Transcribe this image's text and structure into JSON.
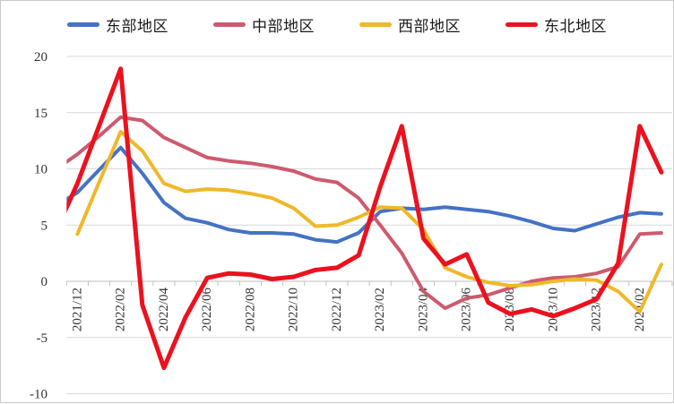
{
  "figure": {
    "background": "#ffffff",
    "border_color": "#c9c9c9",
    "gridline_color": "#d9d9d9",
    "axis_color": "#bfbfbf",
    "tick_label_color": "#333333"
  },
  "legend": {
    "position": "top",
    "items": [
      {
        "key": "east",
        "label": "东部地区",
        "color": "#4472C4"
      },
      {
        "key": "central",
        "label": "中部地区",
        "color": "#CD5A6E"
      },
      {
        "key": "west",
        "label": "西部地区",
        "color": "#EFB829"
      },
      {
        "key": "northeast",
        "label": "东北地区",
        "color": "#EC111E"
      }
    ]
  },
  "chart_data": {
    "type": "line",
    "title": "",
    "xlabel": "",
    "ylabel": "",
    "ylim": [
      -10,
      20
    ],
    "yticks": [
      20,
      15,
      10,
      5,
      0,
      -5,
      -10
    ],
    "grid": true,
    "x_label_interval": 2,
    "x_labels_shown": [
      "2021/12",
      "2022/02",
      "2022/04",
      "2022/06",
      "2022/08",
      "2022/10",
      "2022/12",
      "2023/02",
      "2023/04",
      "2023/06",
      "2023/08",
      "2023/10",
      "2023/12",
      "2024/02"
    ],
    "categories": [
      "2021/12",
      "2022/01",
      "2022/02",
      "2022/03",
      "2022/04",
      "2022/05",
      "2022/06",
      "2022/07",
      "2022/08",
      "2022/09",
      "2022/10",
      "2022/11",
      "2022/12",
      "2023/01",
      "2023/02",
      "2023/03",
      "2023/04",
      "2023/05",
      "2023/06",
      "2023/07",
      "2023/08",
      "2023/09",
      "2023/10",
      "2023/11",
      "2023/12",
      "2024/01",
      "2024/02",
      "2024/03"
    ],
    "series": [
      {
        "name": "东部地区",
        "color": "#4472C4",
        "width": 4,
        "edge_start_value": 7.0,
        "values": [
          7.9,
          9.9,
          11.9,
          9.6,
          7.0,
          5.6,
          5.2,
          4.6,
          4.3,
          4.3,
          4.2,
          3.7,
          3.5,
          4.3,
          6.2,
          6.5,
          6.4,
          6.6,
          6.4,
          6.2,
          5.8,
          5.3,
          4.7,
          4.5,
          5.1,
          5.7,
          6.1,
          6.0
        ]
      },
      {
        "name": "中部地区",
        "color": "#CD5A6E",
        "width": 4,
        "edge_start_value": 10.3,
        "values": [
          11.3,
          12.9,
          14.6,
          14.3,
          12.8,
          11.9,
          11.0,
          10.7,
          10.5,
          10.2,
          9.8,
          9.1,
          8.8,
          7.4,
          5.0,
          2.5,
          -0.9,
          -2.4,
          -1.5,
          -1.2,
          -0.6,
          0.0,
          0.3,
          0.4,
          0.7,
          1.3,
          4.2,
          4.3
        ]
      },
      {
        "name": "西部地区",
        "color": "#EFB829",
        "width": 4,
        "edge_start_value": null,
        "values": [
          4.2,
          8.8,
          13.3,
          11.6,
          8.7,
          8.0,
          8.2,
          8.1,
          7.8,
          7.4,
          6.5,
          4.9,
          5.0,
          5.7,
          6.6,
          6.5,
          4.6,
          1.2,
          0.4,
          -0.1,
          -0.4,
          -0.3,
          0.0,
          0.2,
          0.1,
          -0.9,
          -2.7,
          1.5
        ]
      },
      {
        "name": "东北地区",
        "color": "#EC111E",
        "width": 5,
        "edge_start_value": 5.5,
        "values": [
          8.7,
          13.8,
          18.9,
          -2.1,
          -7.7,
          -3.2,
          0.3,
          0.7,
          0.6,
          0.2,
          0.4,
          1.0,
          1.2,
          2.3,
          8.4,
          13.8,
          3.8,
          1.5,
          2.4,
          -1.9,
          -2.9,
          -2.5,
          -3.1,
          -2.4,
          -1.6,
          1.6,
          13.8,
          9.7
        ]
      }
    ]
  }
}
